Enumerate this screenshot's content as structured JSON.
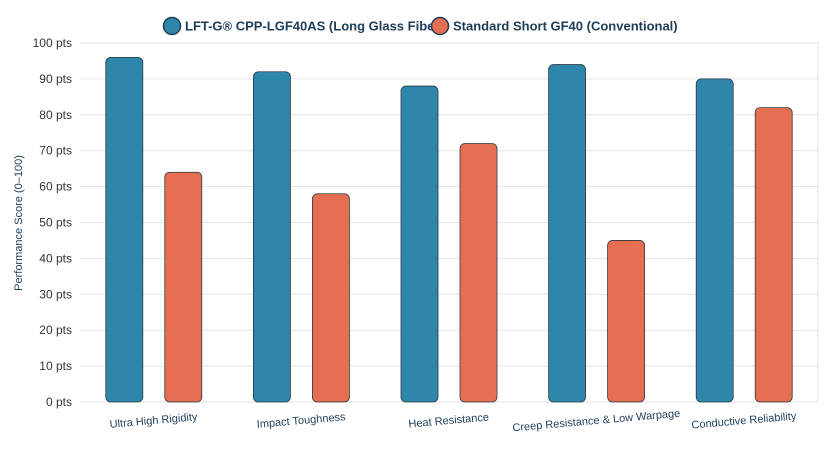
{
  "chart_data": {
    "type": "bar",
    "title": "",
    "xlabel": "",
    "ylabel": "Performance Score (0–100)",
    "ylim": [
      0,
      100
    ],
    "yticks": [
      0,
      10,
      20,
      30,
      40,
      50,
      60,
      70,
      80,
      90,
      100
    ],
    "ytick_suffix": " pts",
    "grid": true,
    "legend_position": "top-center",
    "categories": [
      "Ultra High Rigidity",
      "Impact Toughness",
      "Heat Resistance",
      "Creep Resistance & Low Warpage",
      "Conductive Reliability"
    ],
    "series": [
      {
        "name": "LFT-G® CPP-LGF40AS (Long Glass Fiber)",
        "color": "#2e86ab",
        "values": [
          96,
          92,
          88,
          94,
          90
        ]
      },
      {
        "name": "Standard Short GF40 (Conventional)",
        "color": "#e76f51",
        "values": [
          64,
          58,
          72,
          45,
          82
        ]
      }
    ]
  }
}
